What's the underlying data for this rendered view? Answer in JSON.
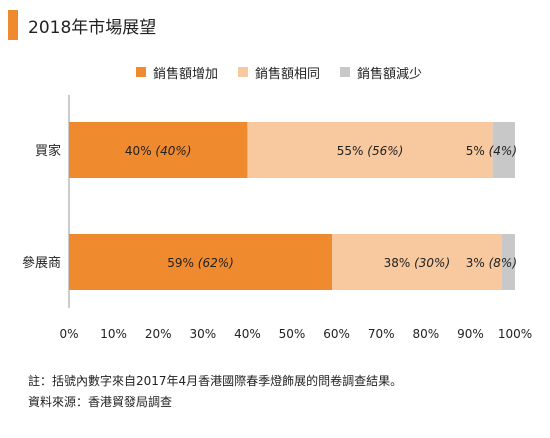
{
  "header": {
    "title": "2018年市場展望"
  },
  "colors": {
    "accent": "#F08A2E",
    "increase": "#F08A2E",
    "same": "#F8C89E",
    "decrease": "#C8C8C8",
    "axis": "#999999"
  },
  "legend": [
    {
      "label": "銷售額增加",
      "color": "#F08A2E"
    },
    {
      "label": "銷售額相同",
      "color": "#F8C89E"
    },
    {
      "label": "銷售額減少",
      "color": "#C8C8C8"
    }
  ],
  "chart_data": {
    "type": "bar",
    "orientation": "horizontal",
    "stacked": true,
    "categories": [
      "買家",
      "參展商"
    ],
    "series": [
      {
        "name": "銷售額增加",
        "values": [
          40,
          59
        ],
        "previous": [
          40,
          62
        ],
        "labels": [
          "40%",
          "59%"
        ],
        "prev_labels": [
          "(40%)",
          "(62%)"
        ]
      },
      {
        "name": "銷售額相同",
        "values": [
          55,
          38
        ],
        "previous": [
          56,
          30
        ],
        "labels": [
          "55%",
          "38%"
        ],
        "prev_labels": [
          "(56%)",
          "(30%)"
        ]
      },
      {
        "name": "銷售額減少",
        "values": [
          5,
          3
        ],
        "previous": [
          4,
          8
        ],
        "labels": [
          "5%",
          "3%"
        ],
        "prev_labels": [
          "(4%)",
          "(8%)"
        ]
      }
    ],
    "xlim": [
      0,
      100
    ],
    "xticks": [
      "0%",
      "10%",
      "20%",
      "30%",
      "40%",
      "50%",
      "60%",
      "70%",
      "80%",
      "90%",
      "100%"
    ],
    "grid": false,
    "legend_position": "top"
  },
  "notes": {
    "note": "註：括號內數字來自2017年4月香港國際春季燈飾展的問卷調查結果。",
    "source": "資料來源：香港貿發局調查"
  }
}
